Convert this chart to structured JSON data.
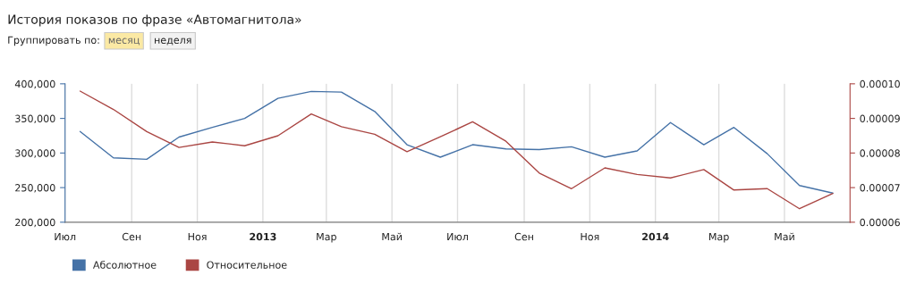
{
  "chart_data": {
    "type": "line",
    "title": "История показов по фразе «Автомагнитола»",
    "annotations": [
      "Группировать по:",
      "месяц",
      "неделя"
    ],
    "x": [
      "2012-07-15",
      "2012-08-15",
      "2012-09-15",
      "2012-10-15",
      "2012-11-15",
      "2012-12-15",
      "2013-01-15",
      "2013-02-15",
      "2013-03-15",
      "2013-04-15",
      "2013-05-15",
      "2013-06-15",
      "2013-07-15",
      "2013-08-15",
      "2013-09-15",
      "2013-10-15",
      "2013-11-15",
      "2013-12-15",
      "2014-01-15",
      "2014-02-15",
      "2014-03-15",
      "2014-04-15",
      "2014-05-15",
      "2014-06-15"
    ],
    "series": [
      {
        "name": "Абсолютное",
        "color": "#4572a7",
        "values": [
          331000,
          293000,
          291000,
          323000,
          337000,
          350000,
          379000,
          389000,
          388000,
          360000,
          312000,
          294000,
          312000,
          306000,
          305000,
          309000,
          294000,
          303000,
          344000,
          312000,
          337000,
          299000,
          253000,
          242000
        ]
      },
      {
        "name": "Относительное",
        "color": "#aa4643",
        "axis": "y2",
        "values": [
          9.79e-05,
          9.26e-05,
          8.62e-05,
          8.16e-05,
          8.32e-05,
          8.21e-05,
          8.5e-05,
          9.13e-05,
          8.76e-05,
          8.54e-05,
          8.04e-05,
          8.47e-05,
          8.9e-05,
          8.34e-05,
          7.42e-05,
          6.97e-05,
          7.57e-05,
          7.38e-05,
          7.28e-05,
          7.52e-05,
          6.93e-05,
          6.97e-05,
          6.39e-05,
          6.83e-05
        ]
      }
    ],
    "xlim": [
      "2012-07-01",
      "2014-07-01"
    ],
    "xticks": [
      {
        "value": "2012-07-01",
        "label": "Июл"
      },
      {
        "value": "2012-09-01",
        "label": "Сен"
      },
      {
        "value": "2012-11-01",
        "label": "Ноя"
      },
      {
        "value": "2013-01-01",
        "label": "2013"
      },
      {
        "value": "2013-03-01",
        "label": "Мар"
      },
      {
        "value": "2013-05-01",
        "label": "Май"
      },
      {
        "value": "2013-07-01",
        "label": "Июл"
      },
      {
        "value": "2013-09-01",
        "label": "Сен"
      },
      {
        "value": "2013-11-01",
        "label": "Ноя"
      },
      {
        "value": "2014-01-01",
        "label": "2014"
      },
      {
        "value": "2014-03-01",
        "label": "Мар"
      },
      {
        "value": "2014-05-01",
        "label": "Май"
      }
    ],
    "ylim": [
      200000,
      400000
    ],
    "yticks": [
      {
        "value": 200000,
        "label": "200,000"
      },
      {
        "value": 250000,
        "label": "250,000"
      },
      {
        "value": 300000,
        "label": "300,000"
      },
      {
        "value": 350000,
        "label": "350,000"
      },
      {
        "value": 400000,
        "label": "400,000"
      }
    ],
    "y2lim": [
      6e-05,
      0.0001
    ],
    "y2ticks": [
      {
        "value": 6e-05,
        "label": "0.00006"
      },
      {
        "value": 7e-05,
        "label": "0.00007"
      },
      {
        "value": 8e-05,
        "label": "0.00008"
      },
      {
        "value": 9e-05,
        "label": "0.00009"
      },
      {
        "value": 0.0001,
        "label": "0.00010"
      }
    ],
    "grid": "x",
    "legend": "bottom left",
    "marker": "none",
    "line_style": "solid"
  }
}
